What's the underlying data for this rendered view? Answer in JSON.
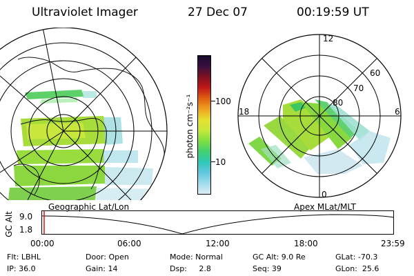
{
  "header": {
    "title": "Ultraviolet Imager",
    "date": "27 Dec 07",
    "time": "00:19:59 UT"
  },
  "maps": {
    "left_label": "Geographic Lat/Lon",
    "right_label": "Apex MLat/MLT",
    "mlt_labels": {
      "top": "12",
      "left": "18",
      "right": "6",
      "bottom": "0"
    },
    "mlat_labels": [
      "60",
      "70",
      "80"
    ]
  },
  "colorbar": {
    "unit_label": "photon cm⁻²s⁻¹",
    "ticks": [
      "100",
      "10"
    ],
    "colors": [
      "#1a0a2a",
      "#3a1040",
      "#801020",
      "#c01818",
      "#e06010",
      "#f0a020",
      "#e8e030",
      "#c8e83a",
      "#80e040",
      "#40d070",
      "#30c8b8",
      "#60c8e0",
      "#a0dcec",
      "#dcecf4"
    ]
  },
  "altitude_plot": {
    "axis_label": "GC Alt",
    "y_ticks": [
      "9.0",
      "1.8"
    ],
    "x_ticks": [
      "00:00",
      "06:00",
      "12:00",
      "18:00",
      "23:59"
    ]
  },
  "info": {
    "flt": "Flt: LBHL",
    "ip": "IP: 36.0",
    "door": "Door: Open",
    "gain": "Gain: 14",
    "mode": "Mode: Normal",
    "dsp": "Dsp:     2.8",
    "gc_alt": "GC Alt: 9.0 Re",
    "seq": "Seq: 39",
    "glat": "GLat: -70.3",
    "glon": "GLon:  25.6"
  }
}
